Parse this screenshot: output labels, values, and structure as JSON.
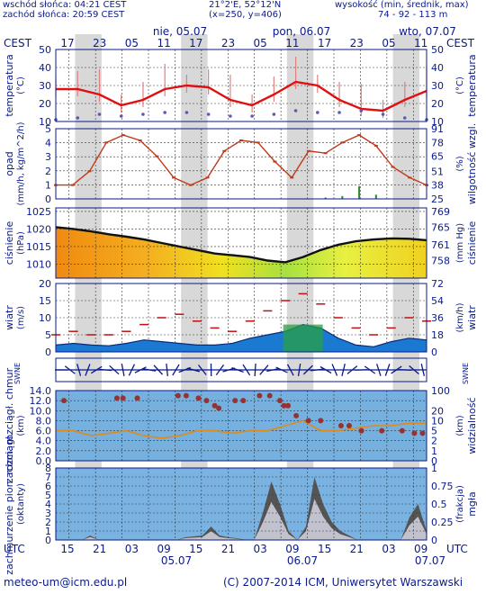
{
  "header": {
    "sunrise": "wschód słońca: 04:21 CEST",
    "sunset": "zachód słońca: 20:59 CEST",
    "coords": "21°2'E, 52°12'N",
    "grid": "(x=250,  y=406)",
    "elev_label": "wysokość (min, średnik, max)",
    "elev_values": "74 - 92 - 113 m",
    "date1": "nie, 05.07",
    "date2": "pon, 06.07",
    "date3": "wto, 07.07",
    "tz_left": "CEST",
    "tz_right": "CEST",
    "top_hours": [
      "17",
      "23",
      "05",
      "11",
      "17",
      "23",
      "05",
      "11",
      "17",
      "23",
      "05",
      "11"
    ]
  },
  "footer": {
    "email": "meteo-um@icm.edu.pl",
    "copyright": "(C) 2007-2014 ICM, Uniwersytet Warszawski",
    "utc_left": "UTC",
    "utc_right": "UTC",
    "bottom_hours": [
      "15",
      "21",
      "03",
      "09",
      "15",
      "21",
      "03",
      "09",
      "15",
      "21",
      "03",
      "09"
    ],
    "bottom_dates": [
      "05.07",
      "06.07",
      "07.07"
    ]
  },
  "colors": {
    "frame": "#0a1a8a",
    "temperature_line": "#e01010",
    "dewpoint": "#5a5ab4",
    "humidity_line": "#c03a1a",
    "wind_fill": "#1a7ad2",
    "gust": "#c01010",
    "sky_panel": "#76b0de",
    "visibility_line": "#e08a1a",
    "cloud_base": "#963232",
    "fog_panel": "#7ab3e2",
    "night_band": "#d8d8d8"
  },
  "chart_data": [
    {
      "type": "line",
      "title": "temperatura",
      "ylabel": "temperatura (°C)",
      "ylabel_right": "temperatura (°C)",
      "y_ticks": [
        10,
        20,
        30,
        40,
        50
      ],
      "ylim": [
        10,
        50
      ],
      "x_hours_utc": [
        0,
        6,
        12,
        18,
        24,
        30,
        36,
        42,
        48,
        54,
        60,
        66,
        72,
        78,
        84
      ],
      "series": [
        {
          "values": [
            28,
            28,
            25,
            19,
            22,
            28,
            30,
            29,
            22,
            19,
            25,
            32,
            30,
            22,
            17,
            16,
            22,
            27
          ]
        },
        {
          "values": [
            11,
            12,
            14,
            13,
            14,
            15,
            15,
            14,
            13,
            13,
            14,
            16,
            15,
            15,
            16,
            14,
            12,
            11
          ]
        }
      ]
    },
    {
      "type": "line",
      "title": "opad",
      "ylabel": "opad (mm/h, kg/m^2/h)",
      "ylabel_right": "wilgotność wzgl. (%)",
      "y_ticks": [
        0,
        1,
        2,
        3,
        4,
        5
      ],
      "y_ticks_right": [
        25,
        38,
        51,
        65,
        78,
        91
      ],
      "ylim": [
        0,
        5
      ],
      "ylim_right": [
        25,
        91
      ],
      "series": [
        {
          "values": [
            38,
            38,
            51,
            78,
            85,
            80,
            65,
            45,
            38,
            45,
            70,
            80,
            78,
            60,
            45,
            70,
            68,
            78,
            85,
            75,
            55,
            45,
            38
          ]
        },
        {
          "values": [
            0,
            0,
            0,
            0,
            0,
            0,
            0,
            0,
            0,
            0,
            0,
            0,
            0,
            0,
            0,
            0,
            0.1,
            0.2,
            0.9,
            0.3,
            0,
            0,
            0
          ]
        }
      ]
    },
    {
      "type": "area",
      "title": "ciśnienie",
      "ylabel": "ciśnienie (hPa)",
      "ylabel_right": "ciśnienie (mm Hg)",
      "y_ticks": [
        1010,
        1015,
        1020,
        1025
      ],
      "y_ticks_right": [
        758,
        761,
        765,
        769
      ],
      "ylim": [
        1006,
        1026
      ],
      "series": [
        {
          "values": [
            1020.5,
            1020,
            1019.3,
            1018.5,
            1017.8,
            1017,
            1016,
            1015,
            1014,
            1013,
            1012.5,
            1012,
            1011,
            1010.5,
            1012,
            1014,
            1015.5,
            1016.5,
            1017,
            1017.3,
            1017.2,
            1016.8
          ]
        }
      ]
    },
    {
      "type": "area",
      "title": "wiatr",
      "ylabel": "wiatr (m/s)",
      "ylabel_right": "wiatr (km/h)",
      "y_ticks": [
        0,
        5,
        10,
        15,
        20
      ],
      "y_ticks_right": [
        0,
        18,
        36,
        54,
        72
      ],
      "ylim": [
        0,
        20
      ],
      "series": [
        {
          "values": [
            2,
            2.5,
            2,
            1.8,
            2.5,
            3.5,
            3,
            2.5,
            2,
            2,
            2.5,
            4,
            5,
            6,
            8,
            7,
            4,
            2,
            1.5,
            3,
            4,
            3.5
          ]
        },
        {
          "values": [
            5,
            6,
            5,
            5,
            6,
            8,
            10,
            11,
            9,
            7,
            6,
            9,
            12,
            15,
            17,
            14,
            10,
            7,
            5,
            7,
            10,
            9
          ]
        }
      ]
    },
    {
      "type": "scatter",
      "title": "zachmurzenie chmur",
      "ylabel": "zachm. rozciągł. chmur (km)",
      "ylabel_right": "widzialność (km)",
      "y_ticks": [
        0.0,
        2.0,
        4.0,
        6.0,
        8.0,
        10.0,
        12.0,
        14.0
      ],
      "y_ticks_right": [
        0,
        1,
        2,
        5,
        10,
        20,
        100
      ],
      "ylim": [
        0,
        14
      ]
    },
    {
      "type": "area",
      "title": "zachmurzenie",
      "ylabel": "zachmurzenie pion. rozciągł. (oktanty)",
      "ylabel_right": "mgła (frakcja)",
      "y_ticks": [
        0,
        1,
        2,
        3,
        4,
        5,
        6,
        7,
        8
      ],
      "y_ticks_right": [
        0,
        0.25,
        0.5,
        0.75,
        1
      ],
      "ylim": [
        0,
        8
      ]
    }
  ],
  "axis_labels": {
    "temp_left": "temperatura",
    "temp_left_unit": "(°C)",
    "temp_right": "temperatura",
    "temp_right_unit": "(°C)",
    "rain_left": "opad",
    "rain_left_unit": "(mm/h, kg/m^2/h)",
    "rain_right": "wilgotność wzgl.",
    "rain_right_unit": "(%)",
    "press_left": "ciśnienie",
    "press_left_unit": "(hPa)",
    "press_right": "ciśnienie",
    "press_right_unit": "(mm Hg)",
    "wind_left": "wiatr",
    "wind_left_unit": "(m/s)",
    "wind_right": "wiatr",
    "wind_right_unit": "(km/h)",
    "cloud_left": "zachm. rozciągł. chmur",
    "cloud_left_unit": "(km)",
    "cloud_right": "widzialność",
    "cloud_right_unit": "(km)",
    "fog_left": "zachmurzenie pion. rozciągł.",
    "fog_left_unit": "(oktanty)",
    "fog_right": "mgła",
    "fog_right_unit": "(frakcja)"
  }
}
